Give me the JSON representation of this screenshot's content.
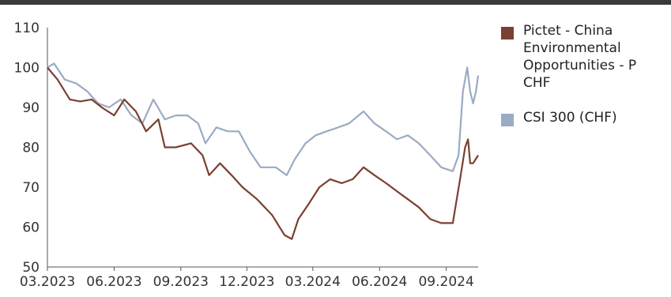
{
  "chart_data": {
    "type": "line",
    "title": "",
    "xlabel": "",
    "ylabel": "",
    "x_tick_labels": [
      "03.2023",
      "06.2023",
      "09.2023",
      "12.2023",
      "03.2024",
      "06.2024",
      "09.2024"
    ],
    "y_ticks": [
      50,
      60,
      70,
      80,
      90,
      100,
      110
    ],
    "ylim": [
      50,
      110
    ],
    "xlim": [
      "2023-03-01",
      "2024-10-15"
    ],
    "grid": false,
    "legend_placement": "right",
    "series": [
      {
        "name": "Pictet - China Environmental Opportunities - P CHF",
        "color": "#7b3f32",
        "points": [
          [
            "2023-03-01",
            100
          ],
          [
            "2023-03-15",
            97
          ],
          [
            "2023-04-01",
            92
          ],
          [
            "2023-04-15",
            91.5
          ],
          [
            "2023-05-01",
            92
          ],
          [
            "2023-05-15",
            90
          ],
          [
            "2023-06-01",
            88
          ],
          [
            "2023-06-15",
            92
          ],
          [
            "2023-07-01",
            89
          ],
          [
            "2023-07-15",
            84
          ],
          [
            "2023-08-01",
            87
          ],
          [
            "2023-08-10",
            80
          ],
          [
            "2023-08-25",
            80
          ],
          [
            "2023-09-15",
            81
          ],
          [
            "2023-10-01",
            78
          ],
          [
            "2023-10-10",
            73
          ],
          [
            "2023-10-25",
            76
          ],
          [
            "2023-11-10",
            73
          ],
          [
            "2023-11-25",
            70
          ],
          [
            "2023-12-15",
            67
          ],
          [
            "2024-01-05",
            63
          ],
          [
            "2024-01-22",
            58
          ],
          [
            "2024-02-01",
            57
          ],
          [
            "2024-02-10",
            62
          ],
          [
            "2024-02-25",
            66
          ],
          [
            "2024-03-10",
            70
          ],
          [
            "2024-03-25",
            72
          ],
          [
            "2024-04-10",
            71
          ],
          [
            "2024-04-25",
            72
          ],
          [
            "2024-05-10",
            75
          ],
          [
            "2024-05-25",
            73
          ],
          [
            "2024-06-10",
            71
          ],
          [
            "2024-06-25",
            69
          ],
          [
            "2024-07-10",
            67
          ],
          [
            "2024-07-25",
            65
          ],
          [
            "2024-08-10",
            62
          ],
          [
            "2024-08-25",
            61
          ],
          [
            "2024-09-10",
            61
          ],
          [
            "2024-09-20",
            72
          ],
          [
            "2024-09-27",
            80
          ],
          [
            "2024-10-01",
            82
          ],
          [
            "2024-10-04",
            76
          ],
          [
            "2024-10-08",
            76
          ],
          [
            "2024-10-15",
            78
          ]
        ]
      },
      {
        "name": "CSI 300 (CHF)",
        "color": "#9aabc4",
        "points": [
          [
            "2023-03-01",
            100
          ],
          [
            "2023-03-10",
            101
          ],
          [
            "2023-03-25",
            97
          ],
          [
            "2023-04-10",
            96
          ],
          [
            "2023-04-25",
            94
          ],
          [
            "2023-05-10",
            91
          ],
          [
            "2023-05-25",
            90
          ],
          [
            "2023-06-10",
            92
          ],
          [
            "2023-06-25",
            88
          ],
          [
            "2023-07-10",
            86
          ],
          [
            "2023-07-25",
            92
          ],
          [
            "2023-08-10",
            87
          ],
          [
            "2023-08-25",
            88
          ],
          [
            "2023-09-10",
            88
          ],
          [
            "2023-09-25",
            86
          ],
          [
            "2023-10-05",
            81
          ],
          [
            "2023-10-20",
            85
          ],
          [
            "2023-11-05",
            84
          ],
          [
            "2023-11-20",
            84
          ],
          [
            "2023-12-05",
            79
          ],
          [
            "2023-12-20",
            75
          ],
          [
            "2024-01-10",
            75
          ],
          [
            "2024-01-25",
            73
          ],
          [
            "2024-02-05",
            77
          ],
          [
            "2024-02-20",
            81
          ],
          [
            "2024-03-05",
            83
          ],
          [
            "2024-03-20",
            84
          ],
          [
            "2024-04-05",
            85
          ],
          [
            "2024-04-20",
            86
          ],
          [
            "2024-05-10",
            89
          ],
          [
            "2024-05-25",
            86
          ],
          [
            "2024-06-10",
            84
          ],
          [
            "2024-06-25",
            82
          ],
          [
            "2024-07-10",
            83
          ],
          [
            "2024-07-25",
            81
          ],
          [
            "2024-08-10",
            78
          ],
          [
            "2024-08-25",
            75
          ],
          [
            "2024-09-10",
            74
          ],
          [
            "2024-09-18",
            78
          ],
          [
            "2024-09-24",
            94
          ],
          [
            "2024-09-30",
            100
          ],
          [
            "2024-10-04",
            94
          ],
          [
            "2024-10-08",
            91
          ],
          [
            "2024-10-12",
            94
          ],
          [
            "2024-10-15",
            98
          ]
        ]
      }
    ]
  }
}
